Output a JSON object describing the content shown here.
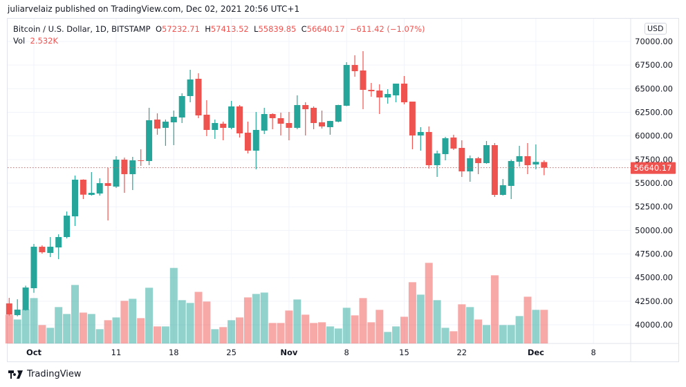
{
  "header": {
    "published": "juliarvelaiz published on TradingView.com, Dec 02, 2021 20:56 UTC+1"
  },
  "legend": {
    "symbol": "Bitcoin / U.S. Dollar, 1D, BITSTAMP",
    "open_label": "O",
    "open": "57232.71",
    "high_label": "H",
    "high": "57413.52",
    "low_label": "L",
    "low": "55839.85",
    "close_label": "C",
    "close": "56640.17",
    "change": "−611.42 (−1.07%)",
    "vol_label": "Vol",
    "vol": "2.532K"
  },
  "price_axis": {
    "currency_button": "USD",
    "last_price_label": "56640.17"
  },
  "footer": {
    "brand": "TradingView"
  },
  "colors": {
    "up": "#26a69a",
    "down": "#ef5350",
    "grid": "#f0f3fa",
    "axis_text": "#131722"
  },
  "chart_data": {
    "type": "candlestick",
    "ylim": [
      37500,
      70000
    ],
    "y_ticks": [
      "70000.00",
      "67500.00",
      "65000.00",
      "62500.00",
      "60000.00",
      "57500.00",
      "55000.00",
      "52500.00",
      "50000.00",
      "47500.00",
      "45000.00",
      "42500.00",
      "40000.00"
    ],
    "x_ticks": [
      {
        "label": "Oct",
        "date": "2021-10-01"
      },
      {
        "label": "11",
        "date": "2021-10-11"
      },
      {
        "label": "18",
        "date": "2021-10-18"
      },
      {
        "label": "25",
        "date": "2021-10-25"
      },
      {
        "label": "Nov",
        "date": "2021-11-01"
      },
      {
        "label": "8",
        "date": "2021-11-08"
      },
      {
        "label": "15",
        "date": "2021-11-15"
      },
      {
        "label": "22",
        "date": "2021-11-22"
      },
      {
        "label": "Dec",
        "date": "2021-12-01"
      },
      {
        "label": "8",
        "date": "2021-12-08"
      }
    ],
    "last_price": 56640.17,
    "columns": [
      "date",
      "open",
      "high",
      "low",
      "close",
      "volume"
    ],
    "candles": [
      [
        "2021-09-28",
        42268,
        42853,
        40978,
        41098,
        2166
      ],
      [
        "2021-09-29",
        41025,
        42708,
        40903,
        41610,
        1802
      ],
      [
        "2021-09-30",
        41562,
        44146,
        41500,
        43951,
        2565
      ],
      [
        "2021-10-01",
        43878,
        48561,
        43390,
        48268,
        3414
      ],
      [
        "2021-10-02",
        48268,
        48415,
        47537,
        47683,
        1386
      ],
      [
        "2021-10-03",
        47610,
        49293,
        47171,
        48268,
        1178
      ],
      [
        "2021-10-04",
        48195,
        49585,
        46951,
        49293,
        2738
      ],
      [
        "2021-10-05",
        49293,
        52000,
        49146,
        51561,
        2218
      ],
      [
        "2021-10-06",
        51488,
        55805,
        50463,
        55366,
        4402
      ],
      [
        "2021-10-07",
        55366,
        55400,
        53317,
        53780,
        2322
      ],
      [
        "2021-10-08",
        53756,
        56171,
        53683,
        53976,
        2218
      ],
      [
        "2021-10-09",
        53902,
        55512,
        53683,
        55000,
        1074
      ],
      [
        "2021-10-10",
        55000,
        56610,
        51049,
        54707,
        1750
      ],
      [
        "2021-10-11",
        54634,
        57854,
        54488,
        57488,
        1958
      ],
      [
        "2021-10-12",
        57488,
        57707,
        53976,
        55951,
        3206
      ],
      [
        "2021-10-13",
        55951,
        57780,
        54268,
        57415,
        3362
      ],
      [
        "2021-10-14",
        57415,
        58585,
        56829,
        57342,
        1906
      ],
      [
        "2021-10-15",
        57342,
        62976,
        56902,
        61659,
        4194
      ],
      [
        "2021-10-16",
        61732,
        62390,
        60122,
        60780,
        1282
      ],
      [
        "2021-10-17",
        60854,
        61732,
        58951,
        61512,
        1282
      ],
      [
        "2021-10-18",
        61439,
        62683,
        59024,
        62024,
        5684
      ],
      [
        "2021-10-19",
        61951,
        64512,
        61366,
        64220,
        3258
      ],
      [
        "2021-10-20",
        64220,
        67000,
        63561,
        65976,
        3050
      ],
      [
        "2021-10-21",
        66049,
        66634,
        61878,
        62171,
        3882
      ],
      [
        "2021-10-22",
        62244,
        63780,
        59976,
        60634,
        3154
      ],
      [
        "2021-10-23",
        60634,
        61732,
        59683,
        61366,
        1074
      ],
      [
        "2021-10-24",
        61293,
        61512,
        59537,
        60854,
        1230
      ],
      [
        "2021-10-25",
        60854,
        63707,
        60707,
        63122,
        1750
      ],
      [
        "2021-10-26",
        63122,
        63268,
        59829,
        60268,
        1958
      ],
      [
        "2021-10-27",
        60341,
        61512,
        58146,
        58439,
        3466
      ],
      [
        "2021-10-28",
        58439,
        62537,
        56463,
        60634,
        3726
      ],
      [
        "2021-10-29",
        60561,
        62976,
        60195,
        62317,
        3830
      ],
      [
        "2021-10-30",
        62317,
        62390,
        60707,
        61878,
        1542
      ],
      [
        "2021-10-31",
        61878,
        62463,
        60049,
        61293,
        1542
      ],
      [
        "2021-11-01",
        61366,
        62537,
        59537,
        60854,
        2478
      ],
      [
        "2021-11-02",
        60854,
        64293,
        60707,
        63268,
        3310
      ],
      [
        "2021-11-03",
        63268,
        63561,
        60049,
        62829,
        2166
      ],
      [
        "2021-11-04",
        62976,
        63122,
        60707,
        61366,
        1542
      ],
      [
        "2021-11-05",
        61439,
        62683,
        60780,
        61000,
        1594
      ],
      [
        "2021-11-06",
        60927,
        61600,
        60122,
        61585,
        1282
      ],
      [
        "2021-11-07",
        61512,
        63300,
        61439,
        63268,
        1126
      ],
      [
        "2021-11-08",
        63195,
        67805,
        63150,
        67512,
        2686
      ],
      [
        "2021-11-09",
        67512,
        68537,
        66268,
        66854,
        2114
      ],
      [
        "2021-11-10",
        66927,
        68976,
        62829,
        64878,
        3414
      ],
      [
        "2021-11-11",
        64878,
        65610,
        64146,
        64732,
        1594
      ],
      [
        "2021-11-12",
        64805,
        65463,
        62317,
        64073,
        2530
      ],
      [
        "2021-11-13",
        64073,
        64951,
        63415,
        64439,
        867
      ],
      [
        "2021-11-14",
        64293,
        65537,
        63561,
        65537,
        1282
      ],
      [
        "2021-11-15",
        65537,
        66342,
        63341,
        63561,
        2010
      ],
      [
        "2021-11-16",
        63634,
        63634,
        58585,
        60049,
        4610
      ],
      [
        "2021-11-17",
        60049,
        60927,
        58439,
        60415,
        3674
      ],
      [
        "2021-11-18",
        60415,
        61000,
        56537,
        56902,
        6066
      ],
      [
        "2021-11-19",
        56902,
        58439,
        55658,
        58146,
        3258
      ],
      [
        "2021-11-20",
        58073,
        59902,
        57415,
        59756,
        1178
      ],
      [
        "2021-11-21",
        59829,
        60122,
        58512,
        58659,
        918
      ],
      [
        "2021-11-22",
        58732,
        59537,
        55658,
        56244,
        2946
      ],
      [
        "2021-11-23",
        56244,
        57927,
        55146,
        57634,
        2738
      ],
      [
        "2021-11-24",
        57634,
        57780,
        55951,
        57122,
        1802
      ],
      [
        "2021-11-25",
        57122,
        59463,
        57049,
        59024,
        1386
      ],
      [
        "2021-11-26",
        59024,
        59244,
        53537,
        53756,
        5130
      ],
      [
        "2021-11-27",
        53756,
        55439,
        53683,
        54780,
        1386
      ],
      [
        "2021-11-28",
        54707,
        57488,
        53317,
        57342,
        1386
      ],
      [
        "2021-11-29",
        57268,
        58951,
        56756,
        57854,
        2062
      ],
      [
        "2021-11-30",
        57854,
        59244,
        55951,
        56902,
        3518
      ],
      [
        "2021-12-01",
        56976,
        59098,
        56463,
        57251,
        2530
      ],
      [
        "2021-12-02",
        57232.71,
        57413.52,
        55839.85,
        56640.17,
        2532
      ]
    ]
  }
}
